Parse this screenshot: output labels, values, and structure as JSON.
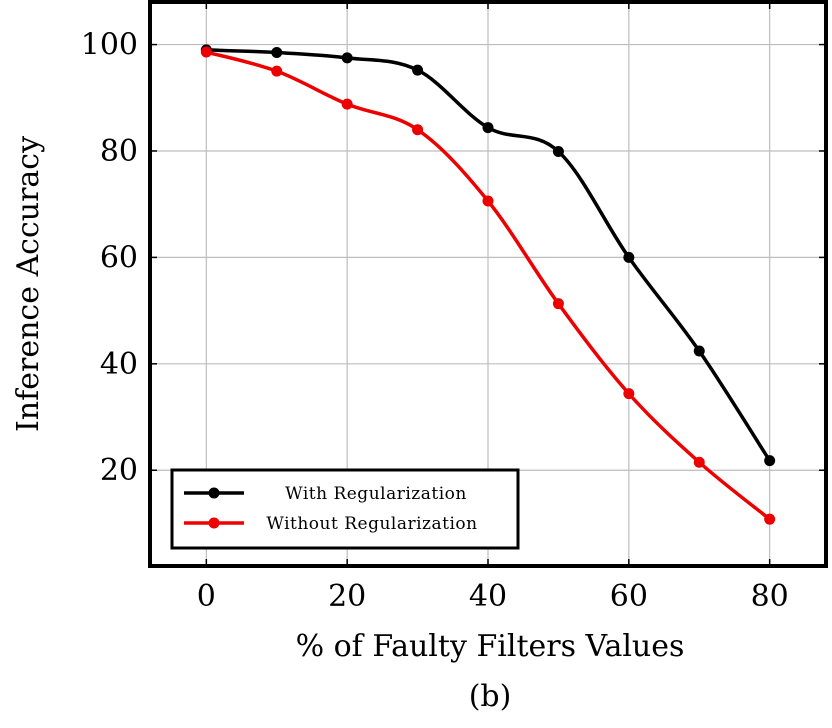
{
  "chart_data": {
    "type": "line",
    "xlabel": "% of Faulty Filters Values",
    "ylabel": "Inference Accuracy",
    "caption": "(b)",
    "xlim": [
      -8,
      88
    ],
    "ylim": [
      2,
      108
    ],
    "xticks": [
      0,
      20,
      40,
      60,
      80
    ],
    "yticks": [
      20,
      40,
      60,
      80,
      100
    ],
    "grid": true,
    "legend_position": "bottom-left",
    "series": [
      {
        "name": "With Regularization",
        "color": "#000000",
        "x": [
          0,
          10,
          20,
          30,
          40,
          50,
          60,
          70,
          80
        ],
        "y": [
          99,
          98.5,
          97.5,
          95.2,
          84.4,
          79.9,
          60.0,
          42.4,
          21.8
        ]
      },
      {
        "name": "Without Regularization",
        "color": "#ee0000",
        "x": [
          0,
          10,
          20,
          30,
          40,
          50,
          60,
          70,
          80
        ],
        "y": [
          98.6,
          95.0,
          88.8,
          84.0,
          70.6,
          51.3,
          34.4,
          21.5,
          10.8
        ]
      }
    ]
  }
}
